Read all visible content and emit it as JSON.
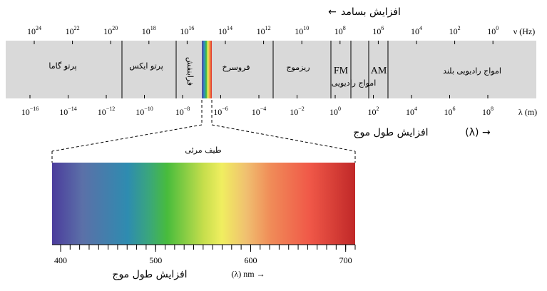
{
  "top_caption": {
    "text": "افزایش بسامد",
    "arrow": "←"
  },
  "frequency_axis": {
    "label": "ν (Hz)",
    "ticks": [
      {
        "base": "10",
        "exp": "24"
      },
      {
        "base": "10",
        "exp": "22"
      },
      {
        "base": "10",
        "exp": "20"
      },
      {
        "base": "10",
        "exp": "18"
      },
      {
        "base": "10",
        "exp": "16"
      },
      {
        "base": "10",
        "exp": "14"
      },
      {
        "base": "10",
        "exp": "12"
      },
      {
        "base": "10",
        "exp": "10"
      },
      {
        "base": "10",
        "exp": "8"
      },
      {
        "base": "10",
        "exp": "6"
      },
      {
        "base": "10",
        "exp": "4"
      },
      {
        "base": "10",
        "exp": "2"
      },
      {
        "base": "10",
        "exp": "0"
      }
    ]
  },
  "bands": [
    "پرتو گاما",
    "پرتو ایکس",
    "فرابنفش",
    "فروسرخ",
    "ریزموج",
    "FM",
    "AM",
    "امواج رادیویی",
    "امواج رادیویی بلند"
  ],
  "wavelength_axis": {
    "label": "λ (m)",
    "ticks": [
      {
        "base": "10",
        "exp": "−16"
      },
      {
        "base": "10",
        "exp": "−14"
      },
      {
        "base": "10",
        "exp": "−12"
      },
      {
        "base": "10",
        "exp": "−10"
      },
      {
        "base": "10",
        "exp": "−8"
      },
      {
        "base": "10",
        "exp": "−6"
      },
      {
        "base": "10",
        "exp": "−4"
      },
      {
        "base": "10",
        "exp": "−2"
      },
      {
        "base": "10",
        "exp": "0"
      },
      {
        "base": "10",
        "exp": "2"
      },
      {
        "base": "10",
        "exp": "4"
      },
      {
        "base": "10",
        "exp": "6"
      },
      {
        "base": "10",
        "exp": "8"
      }
    ]
  },
  "middle_caption": {
    "text": "افزایش طول موج",
    "unit": "(λ) →"
  },
  "visible": {
    "title": "طیف مرئی",
    "xlim": [
      391,
      710
    ],
    "xticks": [
      400,
      500,
      600,
      700
    ],
    "caption": "افزایش طول موج",
    "unit": "(λ)  nm →"
  }
}
